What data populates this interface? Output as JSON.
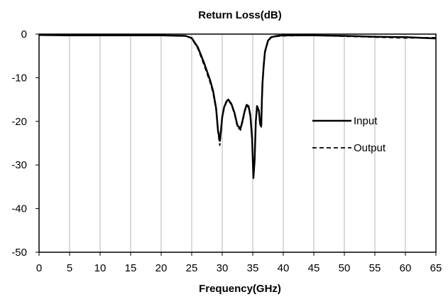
{
  "chart_data": {
    "type": "line",
    "title": "Return Loss(dB)",
    "xlabel": "Frequency(GHz)",
    "ylabel": "",
    "xlim": [
      0,
      65
    ],
    "ylim": [
      -50,
      0
    ],
    "x_ticks": [
      "0",
      "5",
      "10",
      "15",
      "20",
      "25",
      "30",
      "35",
      "40",
      "45",
      "50",
      "55",
      "60",
      "65"
    ],
    "y_ticks": [
      "0",
      "-10",
      "-20",
      "-30",
      "-40",
      "-50"
    ],
    "grid": "vertical",
    "legend_position": "right",
    "series": [
      {
        "name": "Input",
        "style": "solid",
        "color": "#000000",
        "x": [
          0,
          5,
          10,
          15,
          20,
          24,
          25,
          26,
          27,
          28,
          28.5,
          29,
          29.3,
          29.6,
          29.8,
          30,
          30.3,
          30.7,
          31,
          31.5,
          32,
          32.5,
          33,
          33.3,
          33.7,
          34,
          34.3,
          34.6,
          34.9,
          35.1,
          35.3,
          35.5,
          35.7,
          36,
          36.2,
          36.4,
          36.5,
          36.6,
          36.8,
          37,
          37.5,
          38,
          39,
          40,
          45,
          50,
          55,
          60,
          65
        ],
        "values": [
          -0.2,
          -0.3,
          -0.3,
          -0.3,
          -0.3,
          -0.4,
          -0.9,
          -3.0,
          -6.5,
          -10.5,
          -13.0,
          -17.0,
          -22.0,
          -24.5,
          -22.0,
          -19.0,
          -16.8,
          -15.4,
          -15.0,
          -16.0,
          -18.0,
          -21.0,
          -21.6,
          -20.0,
          -17.5,
          -16.2,
          -16.5,
          -18.5,
          -24.0,
          -33.0,
          -29.0,
          -20.0,
          -16.5,
          -17.5,
          -20.5,
          -21.0,
          -15.0,
          -11.0,
          -7.0,
          -4.0,
          -1.5,
          -0.7,
          -0.4,
          -0.3,
          -0.3,
          -0.4,
          -0.6,
          -0.7,
          -1.0
        ]
      },
      {
        "name": "Output",
        "style": "dashed",
        "color": "#000000",
        "x": [
          0,
          5,
          10,
          15,
          20,
          24,
          25,
          26,
          27,
          28,
          28.5,
          29,
          29.3,
          29.6,
          29.8,
          30,
          30.3,
          30.7,
          31,
          31.5,
          32,
          32.5,
          33,
          33.3,
          33.7,
          34,
          34.3,
          34.6,
          34.9,
          35.1,
          35.3,
          35.5,
          35.7,
          36,
          36.2,
          36.4,
          36.5,
          36.6,
          36.8,
          37,
          37.5,
          38,
          39,
          40,
          45,
          50,
          55,
          60,
          65
        ],
        "values": [
          -0.2,
          -0.2,
          -0.3,
          -0.3,
          -0.3,
          -0.4,
          -1.0,
          -3.3,
          -7.0,
          -11.0,
          -13.5,
          -17.5,
          -22.5,
          -25.5,
          -22.5,
          -19.2,
          -17.0,
          -15.6,
          -15.2,
          -16.2,
          -18.3,
          -21.3,
          -22.0,
          -20.3,
          -17.8,
          -16.4,
          -16.8,
          -19.0,
          -24.5,
          -32.5,
          -28.5,
          -20.5,
          -16.8,
          -17.8,
          -20.8,
          -21.3,
          -15.5,
          -11.5,
          -7.5,
          -4.3,
          -1.7,
          -0.8,
          -0.5,
          -0.4,
          -0.3,
          -0.5,
          -0.7,
          -0.9,
          -0.8
        ]
      }
    ]
  }
}
